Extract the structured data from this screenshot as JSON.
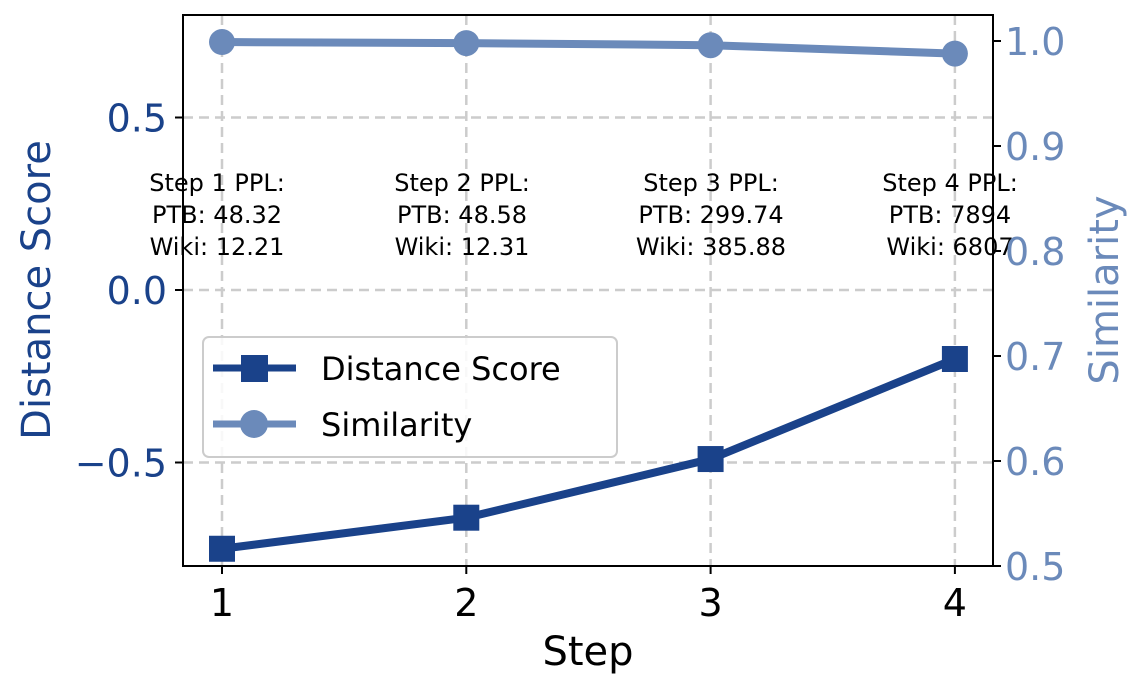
{
  "chart_data": {
    "type": "line",
    "title": "",
    "xlabel": "Step",
    "ylabel": "Distance Score",
    "ylabel_right": "Similarity",
    "x": [
      1,
      2,
      3,
      4
    ],
    "x_ticks": [
      "1",
      "2",
      "3",
      "4"
    ],
    "y_ticks_left": [
      "0.5",
      "0.0",
      "−0.5"
    ],
    "y_ticks_right": [
      "1.0",
      "0.9",
      "0.8",
      "0.7",
      "0.6",
      "0.5"
    ],
    "ylim_left": [
      -0.8,
      0.8
    ],
    "ylim_right": [
      0.5,
      1.0
    ],
    "grid": true,
    "legend_position": "center-left",
    "series": [
      {
        "name": "Distance Score",
        "axis": "left",
        "marker": "square",
        "color": "#1a428a",
        "values": [
          -0.75,
          -0.66,
          -0.49,
          -0.2
        ]
      },
      {
        "name": "Similarity",
        "axis": "right",
        "marker": "circle",
        "color": "#6b8aba",
        "values": [
          0.999,
          0.998,
          0.996,
          0.988
        ]
      }
    ],
    "annotations": [
      {
        "step": 1,
        "lines": [
          "Step 1 PPL:",
          "PTB: 48.32",
          "Wiki: 12.21"
        ]
      },
      {
        "step": 2,
        "lines": [
          "Step 2 PPL:",
          "PTB: 48.58",
          "Wiki: 12.31"
        ]
      },
      {
        "step": 3,
        "lines": [
          "Step 3 PPL:",
          "PTB: 299.74",
          "Wiki: 385.88"
        ]
      },
      {
        "step": 4,
        "lines": [
          "Step 4 PPL:",
          "PTB: 7894",
          "Wiki: 6807"
        ]
      }
    ]
  }
}
